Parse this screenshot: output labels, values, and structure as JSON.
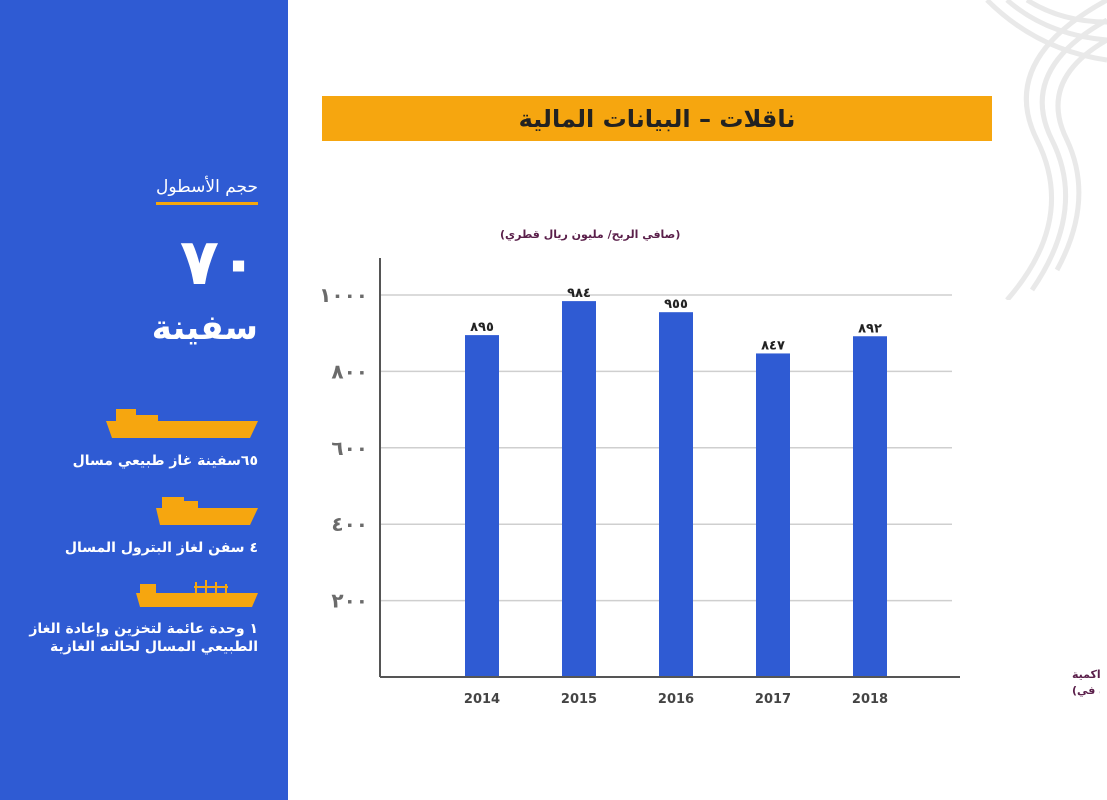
{
  "sidebar": {
    "heading": "حجم الأسطول",
    "fleet_count": "٧٠",
    "fleet_unit": "سفينة",
    "ships": [
      {
        "icon": "lng-carrier-icon",
        "label": "٦٥سفينة غاز طبيعي مسال"
      },
      {
        "icon": "lpg-carrier-icon",
        "label": "٤ سفن لغاز البترول المسال"
      },
      {
        "icon": "fsru-vessel-icon",
        "label": "١ وحدة عائمة لتخزين وإعادة الغاز الطبيعي المسال لحالته الغازية"
      }
    ]
  },
  "title": "ناقلات – البيانات المالية",
  "colors": {
    "sidebar": "#2f5bd3",
    "accent": "#f6a60f",
    "bar": "#2f5bd3",
    "label_text": "#5a1f4a"
  },
  "chart_data": {
    "type": "bar",
    "ylabel": "(صافي الربح/ مليون ريال قطري)",
    "xlabel": "(الأرباح التراكمية عن الفترة في)",
    "categories": [
      "2014",
      "2015",
      "2016",
      "2017",
      "2018"
    ],
    "values": [
      895,
      984,
      955,
      847,
      892
    ],
    "value_labels": [
      "٨٩٥",
      "٩٨٤",
      "٩٥٥",
      "٨٤٧",
      "٨٩٢"
    ],
    "yticks": [
      200,
      400,
      600,
      800,
      1000
    ],
    "ytick_labels": [
      "٢٠٠",
      "٤٠٠",
      "٦٠٠",
      "٨٠٠",
      "١٠٠٠"
    ],
    "ylim": [
      0,
      1100
    ],
    "grid": true
  }
}
